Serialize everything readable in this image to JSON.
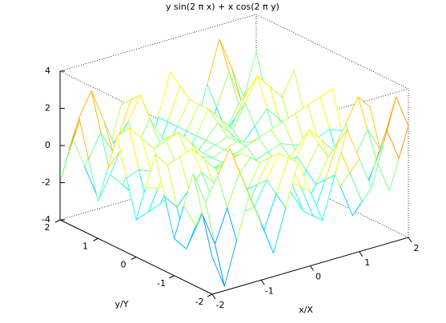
{
  "chart_data": {
    "type": "mesh",
    "title": "y sin(2 π x) + x cos(2 π y)",
    "x_label": "x/X",
    "y_label": "y/Y",
    "colormap": "jet",
    "xlim": [
      -2,
      2
    ],
    "ylim": [
      -2,
      2
    ],
    "zlim": [
      -4,
      4
    ],
    "xticks": [
      -2,
      -1,
      0,
      1,
      2
    ],
    "yticks": [
      -2,
      -1,
      0,
      1,
      2
    ],
    "zticks": [
      -4,
      -2,
      0,
      2,
      4
    ],
    "x": [
      -2,
      -1.75,
      -1.5,
      -1.25,
      -1,
      -0.75,
      -0.5,
      -0.25,
      0,
      0.25,
      0.5,
      0.75,
      1,
      1.25,
      1.5,
      1.75,
      2
    ],
    "y": [
      -2,
      -1.75,
      -1.5,
      -1.25,
      -1,
      -0.75,
      -0.5,
      -0.25,
      0,
      0.25,
      0.5,
      0.75,
      1,
      1.25,
      1.5,
      1.75,
      2
    ],
    "z": [
      [
        -2,
        -3.75,
        -1.5,
        0.75,
        -1,
        -2.75,
        -0.5,
        1.75,
        0,
        -1.75,
        0.5,
        2.75,
        1,
        -0.75,
        1.5,
        3.75,
        2
      ],
      [
        0,
        -1.75,
        0,
        1.75,
        0,
        -1.75,
        0,
        1.75,
        0,
        -1.75,
        0,
        1.75,
        0,
        -1.75,
        0,
        1.75,
        0
      ],
      [
        2,
        0.25,
        1.5,
        2.75,
        1,
        -0.75,
        0.5,
        1.75,
        0,
        -1.75,
        -0.5,
        0.75,
        -1,
        -2.75,
        -1.5,
        -0.25,
        -2
      ],
      [
        0,
        -1.25,
        0,
        1.25,
        0,
        -1.25,
        0,
        1.25,
        0,
        -1.25,
        0,
        1.25,
        0,
        -1.25,
        0,
        1.25,
        0
      ],
      [
        -2,
        -2.75,
        -1.5,
        -0.25,
        -1,
        -1.75,
        -0.5,
        0.75,
        0,
        -0.75,
        0.5,
        1.75,
        1,
        0.25,
        1.5,
        2.75,
        2
      ],
      [
        0,
        -0.75,
        0,
        0.75,
        0,
        -0.75,
        0,
        0.75,
        0,
        -0.75,
        0,
        0.75,
        0,
        -0.75,
        0,
        0.75,
        0
      ],
      [
        2,
        1.25,
        1.5,
        1.75,
        1,
        0.25,
        0.5,
        0.75,
        0,
        -0.75,
        -0.5,
        -0.25,
        -1,
        -1.75,
        -1.5,
        -1.25,
        -2
      ],
      [
        0,
        -0.25,
        0,
        0.25,
        0,
        -0.25,
        0,
        0.25,
        0,
        -0.25,
        0,
        0.25,
        0,
        -0.25,
        0,
        0.25,
        0
      ],
      [
        -2,
        -1.75,
        -1.5,
        -1.25,
        -1,
        -0.75,
        -0.5,
        -0.25,
        0,
        0.25,
        0.5,
        0.75,
        1,
        1.25,
        1.5,
        1.75,
        2
      ],
      [
        0,
        0.25,
        0,
        -0.25,
        0,
        0.25,
        0,
        -0.25,
        0,
        0.25,
        0,
        -0.25,
        0,
        0.25,
        0,
        -0.25,
        0
      ],
      [
        2,
        2.25,
        1.5,
        0.75,
        1,
        1.25,
        0.5,
        -0.25,
        0,
        0.25,
        -0.5,
        -1.25,
        -1,
        -0.75,
        -1.5,
        -2.25,
        -2
      ],
      [
        0,
        0.75,
        0,
        -0.75,
        0,
        0.75,
        0,
        -0.75,
        0,
        0.75,
        0,
        -0.75,
        0,
        0.75,
        0,
        -0.75,
        0
      ],
      [
        -2,
        -0.75,
        -1.5,
        -2.25,
        -1,
        0.25,
        -0.5,
        -1.25,
        0,
        1.25,
        0.5,
        -0.25,
        1,
        2.25,
        1.5,
        0.75,
        2
      ],
      [
        0,
        1.25,
        0,
        -1.25,
        0,
        1.25,
        0,
        -1.25,
        0,
        1.25,
        0,
        -1.25,
        0,
        1.25,
        0,
        -1.25,
        0
      ],
      [
        2,
        3.25,
        1.5,
        -0.25,
        1,
        2.25,
        0.5,
        -1.25,
        0,
        1.25,
        -0.5,
        -2.25,
        -1,
        0.25,
        -1.5,
        -3.25,
        -2
      ],
      [
        0,
        1.75,
        0,
        -1.75,
        0,
        1.75,
        0,
        -1.75,
        0,
        1.75,
        0,
        -1.75,
        0,
        1.75,
        0,
        -1.75,
        0
      ],
      [
        -2,
        0.25,
        -1.5,
        -3.25,
        -1,
        1.25,
        -0.5,
        -2.25,
        0,
        2.25,
        0.5,
        -1.25,
        1,
        3.25,
        1.5,
        -0.25,
        2
      ]
    ]
  }
}
